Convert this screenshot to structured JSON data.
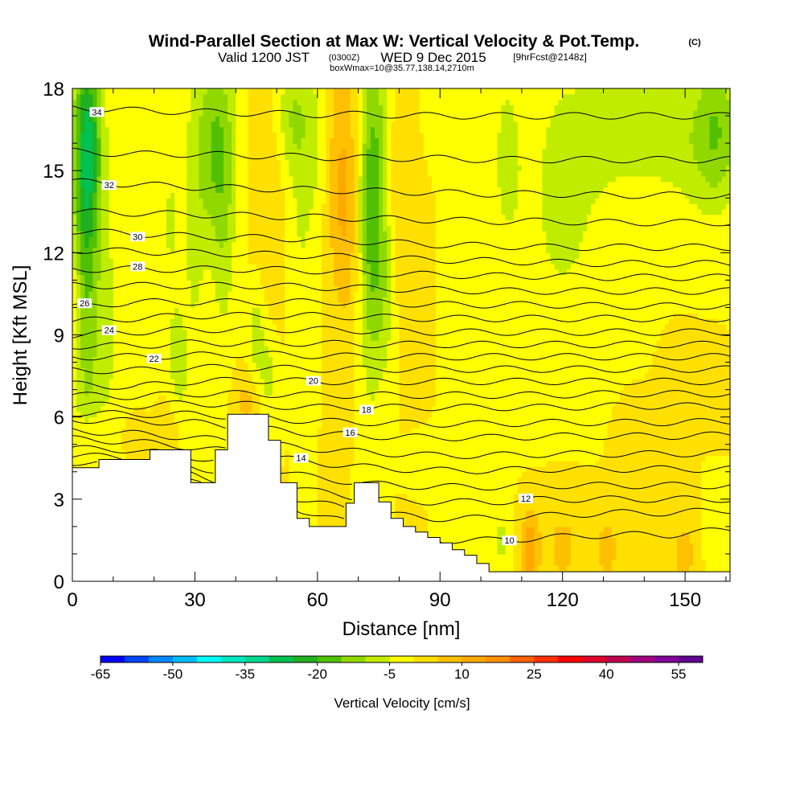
{
  "title": {
    "main": "Wind-Parallel Section at Max W: Vertical Velocity & Pot.Temp.",
    "copyright": "(C)",
    "valid_prefix": "Valid 1200 JST",
    "valid_utc": "(0300Z)",
    "valid_date": "WED 9 Dec 2015",
    "forecast": "[9hrFcst@2148z]",
    "box": "boxWmax=10@35.77,138.14,2710m"
  },
  "chart_data": {
    "type": "heatmap",
    "xlabel": "Distance [nm]",
    "ylabel": "Height [Kft MSL]",
    "xlim": [
      0,
      161
    ],
    "ylim": [
      0,
      18
    ],
    "x_ticks": [
      "0",
      "30",
      "60",
      "90",
      "120",
      "150"
    ],
    "x_tick_values": [
      0,
      30,
      60,
      90,
      120,
      150
    ],
    "y_ticks": [
      "0",
      "3",
      "6",
      "9",
      "12",
      "15",
      "18"
    ],
    "y_tick_values": [
      0,
      3,
      6,
      9,
      12,
      15,
      18
    ],
    "background_value_cms": 0,
    "colorbar": {
      "label": "Vertical Velocity [cm/s]",
      "tick_labels": [
        "-65",
        "-50",
        "-35",
        "-20",
        "-5",
        "10",
        "25",
        "40",
        "55"
      ],
      "tick_values": [
        -65,
        -50,
        -35,
        -20,
        -5,
        10,
        25,
        40,
        55
      ],
      "min": -65,
      "max": 60,
      "step": 5,
      "colors": [
        "#0000ff",
        "#0044ff",
        "#0088ff",
        "#00bbff",
        "#00ffff",
        "#00e8c0",
        "#00d890",
        "#00c050",
        "#20b020",
        "#50c000",
        "#90d800",
        "#c0ec00",
        "#ffff00",
        "#ffe000",
        "#ffc000",
        "#ffa800",
        "#ff9000",
        "#ff6000",
        "#ff3000",
        "#ff0000",
        "#e0002c",
        "#c00050",
        "#a00080",
        "#800098",
        "#600090"
      ]
    },
    "terrain": [
      [
        0,
        4.15
      ],
      [
        6.5,
        4.15
      ],
      [
        6.5,
        4.45
      ],
      [
        19,
        4.45
      ],
      [
        19,
        4.8
      ],
      [
        29,
        4.8
      ],
      [
        29,
        3.6
      ],
      [
        35,
        3.6
      ],
      [
        35,
        4.8
      ],
      [
        38,
        4.8
      ],
      [
        38,
        6.1
      ],
      [
        48,
        6.1
      ],
      [
        48,
        5.15
      ],
      [
        51,
        5.15
      ],
      [
        51,
        3.6
      ],
      [
        55,
        3.6
      ],
      [
        55,
        2.3
      ],
      [
        58,
        2.3
      ],
      [
        58,
        2.0
      ],
      [
        67,
        2.0
      ],
      [
        67,
        2.85
      ],
      [
        69,
        2.85
      ],
      [
        69,
        3.6
      ],
      [
        75,
        3.6
      ],
      [
        75,
        2.9
      ],
      [
        78,
        2.9
      ],
      [
        78,
        2.3
      ],
      [
        81,
        2.3
      ],
      [
        81,
        2.0
      ],
      [
        84,
        2.0
      ],
      [
        84,
        1.8
      ],
      [
        87,
        1.8
      ],
      [
        87,
        1.6
      ],
      [
        90,
        1.6
      ],
      [
        90,
        1.4
      ],
      [
        93,
        1.4
      ],
      [
        93,
        1.15
      ],
      [
        96,
        1.15
      ],
      [
        96,
        0.95
      ],
      [
        99,
        0.95
      ],
      [
        99,
        0.65
      ],
      [
        102,
        0.65
      ],
      [
        102,
        0.35
      ],
      [
        161,
        0.35
      ]
    ],
    "w_features": [
      {
        "x": 3,
        "z": 12,
        "sx": 2.2,
        "sz": 5.5,
        "w": -14
      },
      {
        "x": 4,
        "z": 16,
        "sx": 2.5,
        "sz": 2.5,
        "w": -18
      },
      {
        "x": 8,
        "z": 9,
        "sx": 3,
        "sz": 4,
        "w": -6
      },
      {
        "x": 16,
        "z": 14,
        "sx": 3,
        "sz": 3,
        "w": -4
      },
      {
        "x": 24,
        "z": 13,
        "sx": 2.5,
        "sz": 4,
        "w": -5
      },
      {
        "x": 26,
        "z": 7.5,
        "sx": 1.6,
        "sz": 1.5,
        "w": -6
      },
      {
        "x": 30,
        "z": 12,
        "sx": 2,
        "sz": 4,
        "w": -5
      },
      {
        "x": 35,
        "z": 16,
        "sx": 3.5,
        "sz": 2.5,
        "w": -15
      },
      {
        "x": 37,
        "z": 12,
        "sx": 2,
        "sz": 3,
        "w": -6
      },
      {
        "x": 45,
        "z": 9,
        "sx": 1.5,
        "sz": 1.5,
        "w": -8
      },
      {
        "x": 48,
        "z": 7.5,
        "sx": 1.5,
        "sz": 1.2,
        "w": -7
      },
      {
        "x": 43,
        "z": 6.6,
        "sx": 2.5,
        "sz": 0.8,
        "w": 7
      },
      {
        "x": 48,
        "z": 14,
        "sx": 3,
        "sz": 3,
        "w": 5
      },
      {
        "x": 54,
        "z": 17,
        "sx": 3,
        "sz": 1.5,
        "w": -10
      },
      {
        "x": 56,
        "z": 13,
        "sx": 2.5,
        "sz": 2.5,
        "w": -5
      },
      {
        "x": 60,
        "z": 16,
        "sx": 2.5,
        "sz": 2,
        "w": -5
      },
      {
        "x": 64,
        "z": 15,
        "sx": 2,
        "sz": 3,
        "w": 6
      },
      {
        "x": 67,
        "z": 14,
        "sx": 2,
        "sz": 3.5,
        "w": 9
      },
      {
        "x": 73,
        "z": 13.5,
        "sx": 2,
        "sz": 4.5,
        "w": -14
      },
      {
        "x": 76,
        "z": 14.5,
        "sx": 2.5,
        "sz": 3.5,
        "w": -9
      },
      {
        "x": 79,
        "z": 14,
        "sx": 2,
        "sz": 3.5,
        "w": 6
      },
      {
        "x": 77,
        "z": 10,
        "sx": 2,
        "sz": 2,
        "w": -5
      },
      {
        "x": 82,
        "z": 14,
        "sx": 2,
        "sz": 3,
        "w": 3
      },
      {
        "x": 91,
        "z": 17.5,
        "sx": 3,
        "sz": 1,
        "w": -5
      },
      {
        "x": 106,
        "z": 15.5,
        "sx": 3,
        "sz": 3,
        "w": -5
      },
      {
        "x": 120,
        "z": 14,
        "sx": 8,
        "sz": 4.5,
        "w": -6
      },
      {
        "x": 138,
        "z": 16.5,
        "sx": 9,
        "sz": 2,
        "w": -6
      },
      {
        "x": 152,
        "z": 16,
        "sx": 6,
        "sz": 2,
        "w": -5
      },
      {
        "x": 158,
        "z": 16.5,
        "sx": 4,
        "sz": 2,
        "w": -12
      },
      {
        "x": 112,
        "z": 1.2,
        "sx": 1.5,
        "sz": 1,
        "w": 14
      },
      {
        "x": 120,
        "z": 1.3,
        "sx": 4,
        "sz": 1.5,
        "w": 6
      },
      {
        "x": 131,
        "z": 1.2,
        "sx": 3,
        "sz": 1.3,
        "w": 6
      },
      {
        "x": 150,
        "z": 1,
        "sx": 3,
        "sz": 1.5,
        "w": 6
      },
      {
        "x": 105,
        "z": 1.5,
        "sx": 1.5,
        "sz": 0.8,
        "w": -6
      },
      {
        "x": 157,
        "z": 1.7,
        "sx": 2,
        "sz": 1.5,
        "w": -5
      },
      {
        "x": 86,
        "z": 4.4,
        "sx": 4,
        "sz": 0.4,
        "w": -5
      },
      {
        "x": 4,
        "z": 5.3,
        "sx": 3,
        "sz": 0.6,
        "w": 6
      },
      {
        "x": 15,
        "z": 5.3,
        "sx": 2,
        "sz": 0.5,
        "w": 4
      },
      {
        "x": 24,
        "z": 5.8,
        "sx": 2,
        "sz": 0.8,
        "w": 5
      },
      {
        "x": 0,
        "z": 10,
        "sx": 2,
        "sz": 2,
        "w": 5
      },
      {
        "x": 150,
        "z": 7,
        "sx": 3,
        "sz": 1,
        "w": 3
      },
      {
        "x": 157,
        "z": 6.5,
        "sx": 2,
        "sz": 1,
        "w": 4
      },
      {
        "x": 137,
        "z": 5,
        "sx": 3,
        "sz": 1,
        "w": 3
      }
    ],
    "theta_levels": [
      {
        "value": 10,
        "label": "10",
        "z": [
          4.1,
          4.0,
          3.6,
          3.1,
          2.5,
          1.9,
          1.5,
          1.5,
          1.6,
          1.7,
          1.7,
          1.9
        ],
        "label_x": 107
      },
      {
        "value": 11,
        "label": "",
        "z": [
          4.35,
          4.25,
          3.9,
          3.4,
          2.9,
          2.5,
          2.3,
          2.3,
          2.4,
          2.5,
          2.5,
          2.6
        ]
      },
      {
        "value": 12,
        "label": "12",
        "z": [
          4.6,
          4.5,
          4.2,
          3.8,
          3.3,
          3.0,
          2.9,
          2.9,
          3.0,
          3.0,
          3.0,
          3.0
        ],
        "label_x": 111
      },
      {
        "value": 13,
        "label": "",
        "z": [
          4.85,
          4.8,
          4.55,
          4.2,
          3.8,
          3.55,
          3.45,
          3.45,
          3.5,
          3.5,
          3.5,
          3.5
        ]
      },
      {
        "value": 14,
        "label": "14",
        "z": [
          5.2,
          5.1,
          4.9,
          4.65,
          4.35,
          4.15,
          4.05,
          4.05,
          4.1,
          4.1,
          4.1,
          4.1
        ],
        "label_x": 56
      },
      {
        "value": 15,
        "label": "",
        "z": [
          5.5,
          5.4,
          5.25,
          5.05,
          4.85,
          4.7,
          4.6,
          4.6,
          4.65,
          4.65,
          4.65,
          4.7
        ]
      },
      {
        "value": 16,
        "label": "16",
        "z": [
          5.9,
          5.85,
          5.8,
          5.6,
          5.4,
          5.3,
          5.25,
          5.25,
          5.3,
          5.3,
          5.3,
          5.35
        ],
        "label_x": 68
      },
      {
        "value": 17,
        "label": "",
        "z": [
          6.15,
          6.1,
          6.1,
          6.0,
          5.85,
          5.8,
          5.75,
          5.75,
          5.8,
          5.8,
          5.8,
          5.85
        ]
      },
      {
        "value": 18,
        "label": "18",
        "z": [
          6.45,
          6.4,
          6.5,
          6.45,
          6.35,
          6.35,
          6.35,
          6.35,
          6.35,
          6.4,
          6.4,
          6.4
        ],
        "label_x": 72
      },
      {
        "value": 19,
        "label": "",
        "z": [
          6.8,
          6.75,
          6.85,
          6.85,
          6.8,
          6.8,
          6.8,
          6.8,
          6.8,
          6.85,
          6.85,
          6.85
        ]
      },
      {
        "value": 20,
        "label": "20",
        "z": [
          7.2,
          7.1,
          7.3,
          7.35,
          7.3,
          7.3,
          7.3,
          7.3,
          7.3,
          7.3,
          7.3,
          7.3
        ],
        "label_x": 59
      },
      {
        "value": 21,
        "label": "",
        "z": [
          7.7,
          7.7,
          7.8,
          7.8,
          7.75,
          7.75,
          7.75,
          7.75,
          7.75,
          7.75,
          7.75,
          7.75
        ]
      },
      {
        "value": 22,
        "label": "22",
        "z": [
          8.2,
          8.2,
          8.25,
          8.3,
          8.25,
          8.2,
          8.2,
          8.2,
          8.2,
          8.2,
          8.2,
          8.2
        ],
        "label_x": 20
      },
      {
        "value": 23,
        "label": "",
        "z": [
          8.6,
          8.6,
          8.7,
          8.7,
          8.7,
          8.65,
          8.65,
          8.65,
          8.65,
          8.65,
          8.65,
          8.65
        ]
      },
      {
        "value": 24,
        "label": "24",
        "z": [
          9.0,
          9.1,
          9.2,
          9.2,
          9.2,
          9.15,
          9.1,
          9.1,
          9.1,
          9.1,
          9.1,
          9.1
        ],
        "label_x": 9
      },
      {
        "value": 25,
        "label": "",
        "z": [
          9.5,
          9.6,
          9.7,
          9.7,
          9.7,
          9.65,
          9.6,
          9.6,
          9.6,
          9.6,
          9.6,
          9.6
        ]
      },
      {
        "value": 26,
        "label": "26",
        "z": [
          10.0,
          10.2,
          10.2,
          10.2,
          10.2,
          10.2,
          10.1,
          10.1,
          10.1,
          10.05,
          10.05,
          10.05
        ],
        "label_x": 3
      },
      {
        "value": 27,
        "label": "",
        "z": [
          10.8,
          10.8,
          10.8,
          10.8,
          10.75,
          10.7,
          10.65,
          10.6,
          10.6,
          10.6,
          10.6,
          10.6
        ]
      },
      {
        "value": 28,
        "label": "28",
        "z": [
          11.4,
          11.4,
          11.4,
          11.4,
          11.35,
          11.25,
          11.2,
          11.15,
          11.15,
          11.1,
          11.1,
          11.1
        ],
        "label_x": 16
      },
      {
        "value": 29,
        "label": "",
        "z": [
          12.1,
          12.05,
          12.0,
          11.95,
          11.9,
          11.8,
          11.75,
          11.7,
          11.65,
          11.6,
          11.6,
          11.6
        ]
      },
      {
        "value": 30,
        "label": "30",
        "z": [
          12.8,
          12.7,
          12.6,
          12.55,
          12.5,
          12.4,
          12.3,
          12.25,
          12.2,
          12.2,
          12.2,
          12.2
        ],
        "label_x": 16
      },
      {
        "value": 31,
        "label": "",
        "z": [
          13.5,
          13.45,
          13.4,
          13.35,
          13.3,
          13.25,
          13.2,
          13.15,
          13.15,
          13.1,
          13.1,
          13.1
        ]
      },
      {
        "value": 32,
        "label": "32",
        "z": [
          14.6,
          14.5,
          14.4,
          14.35,
          14.3,
          14.25,
          14.2,
          14.15,
          14.15,
          14.1,
          14.1,
          14.1
        ],
        "label_x": 9
      },
      {
        "value": 33,
        "label": "",
        "z": [
          15.7,
          15.6,
          15.6,
          15.55,
          15.5,
          15.45,
          15.45,
          15.4,
          15.4,
          15.4,
          15.4,
          15.4
        ]
      },
      {
        "value": 34,
        "label": "34",
        "z": [
          17.3,
          17.2,
          17.15,
          17.1,
          17.05,
          17.05,
          17.0,
          17.0,
          17.0,
          17.0,
          17.0,
          17.0
        ],
        "label_x": 6
      }
    ]
  }
}
